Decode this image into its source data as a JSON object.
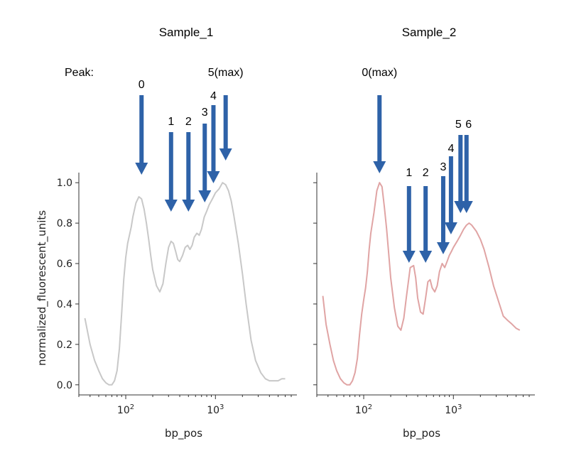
{
  "peak_label": "Peak:",
  "chart_data": [
    {
      "type": "line",
      "title": "Sample_1",
      "xlabel": "bp_pos",
      "ylabel": "normalized_fluorescent_units",
      "xscale": "log",
      "xlim": [
        30,
        7000
      ],
      "ylim": [
        -0.05,
        1.05
      ],
      "yticks": [
        0.0,
        0.2,
        0.4,
        0.6,
        0.8,
        1.0
      ],
      "ytick_labels": [
        "0.0",
        "0.2",
        "0.4",
        "0.6",
        "0.8",
        "1.0"
      ],
      "xticks": [
        100,
        1000
      ],
      "color": "#c8c8c8",
      "series": [
        {
          "name": "Sample_1",
          "x": [
            35,
            40,
            45,
            50,
            55,
            60,
            65,
            70,
            75,
            80,
            85,
            90,
            95,
            100,
            105,
            110,
            115,
            120,
            130,
            140,
            150,
            160,
            170,
            180,
            190,
            200,
            220,
            240,
            260,
            280,
            300,
            320,
            340,
            360,
            380,
            400,
            430,
            460,
            490,
            520,
            550,
            580,
            620,
            660,
            700,
            750,
            800,
            850,
            900,
            950,
            1000,
            1100,
            1200,
            1300,
            1400,
            1500,
            1600,
            1800,
            2000,
            2200,
            2500,
            2800,
            3200,
            3600,
            4000,
            4500,
            5000,
            5500,
            6000
          ],
          "y": [
            0.33,
            0.2,
            0.12,
            0.07,
            0.03,
            0.01,
            0.0,
            0.0,
            0.02,
            0.07,
            0.18,
            0.35,
            0.52,
            0.63,
            0.7,
            0.74,
            0.78,
            0.83,
            0.9,
            0.93,
            0.92,
            0.87,
            0.8,
            0.72,
            0.64,
            0.57,
            0.49,
            0.46,
            0.5,
            0.6,
            0.68,
            0.71,
            0.7,
            0.66,
            0.62,
            0.61,
            0.64,
            0.68,
            0.69,
            0.67,
            0.69,
            0.73,
            0.75,
            0.74,
            0.77,
            0.83,
            0.86,
            0.89,
            0.91,
            0.93,
            0.95,
            0.97,
            1.0,
            0.99,
            0.96,
            0.91,
            0.84,
            0.7,
            0.55,
            0.4,
            0.22,
            0.12,
            0.06,
            0.03,
            0.02,
            0.02,
            0.02,
            0.03,
            0.03
          ]
        }
      ],
      "peaks": [
        {
          "label": "0",
          "x": 150
        },
        {
          "label": "1",
          "x": 320
        },
        {
          "label": "2",
          "x": 500
        },
        {
          "label": "3",
          "x": 760
        },
        {
          "label": "4",
          "x": 950
        },
        {
          "label": "5(max)",
          "x": 1300
        }
      ]
    },
    {
      "type": "line",
      "title": "Sample_2",
      "xlabel": "bp_pos",
      "ylabel": "",
      "xscale": "log",
      "xlim": [
        30,
        7000
      ],
      "ylim": [
        -0.05,
        1.05
      ],
      "yticks": [
        0.0,
        0.2,
        0.4,
        0.6,
        0.8,
        1.0
      ],
      "ytick_labels": [],
      "xticks": [
        100,
        1000
      ],
      "color": "#e0a4a4",
      "series": [
        {
          "name": "Sample_2",
          "x": [
            35,
            38,
            42,
            46,
            50,
            55,
            60,
            65,
            70,
            75,
            80,
            85,
            90,
            95,
            100,
            105,
            110,
            115,
            120,
            130,
            140,
            150,
            160,
            170,
            180,
            190,
            200,
            220,
            240,
            260,
            280,
            300,
            330,
            360,
            380,
            400,
            430,
            460,
            490,
            520,
            550,
            580,
            620,
            660,
            700,
            750,
            800,
            850,
            900,
            950,
            1000,
            1100,
            1200,
            1300,
            1400,
            1500,
            1600,
            1800,
            2000,
            2200,
            2500,
            2800,
            3200,
            3600,
            4000,
            4500,
            5000,
            5500
          ],
          "y": [
            0.44,
            0.3,
            0.2,
            0.12,
            0.07,
            0.03,
            0.01,
            0.0,
            0.0,
            0.02,
            0.06,
            0.13,
            0.25,
            0.35,
            0.42,
            0.48,
            0.56,
            0.67,
            0.75,
            0.85,
            0.96,
            1.0,
            0.98,
            0.88,
            0.77,
            0.65,
            0.53,
            0.38,
            0.29,
            0.27,
            0.33,
            0.44,
            0.58,
            0.59,
            0.53,
            0.43,
            0.36,
            0.35,
            0.43,
            0.51,
            0.52,
            0.48,
            0.46,
            0.49,
            0.56,
            0.6,
            0.58,
            0.61,
            0.64,
            0.66,
            0.68,
            0.71,
            0.74,
            0.77,
            0.79,
            0.8,
            0.79,
            0.76,
            0.72,
            0.67,
            0.58,
            0.49,
            0.41,
            0.34,
            0.32,
            0.3,
            0.28,
            0.27
          ]
        }
      ],
      "peaks": [
        {
          "label": "0(max)",
          "x": 150
        },
        {
          "label": "1",
          "x": 320
        },
        {
          "label": "2",
          "x": 490
        },
        {
          "label": "3",
          "x": 770
        },
        {
          "label": "4",
          "x": 940
        },
        {
          "label": "5",
          "x": 1200
        },
        {
          "label": "6",
          "x": 1400
        }
      ]
    }
  ]
}
